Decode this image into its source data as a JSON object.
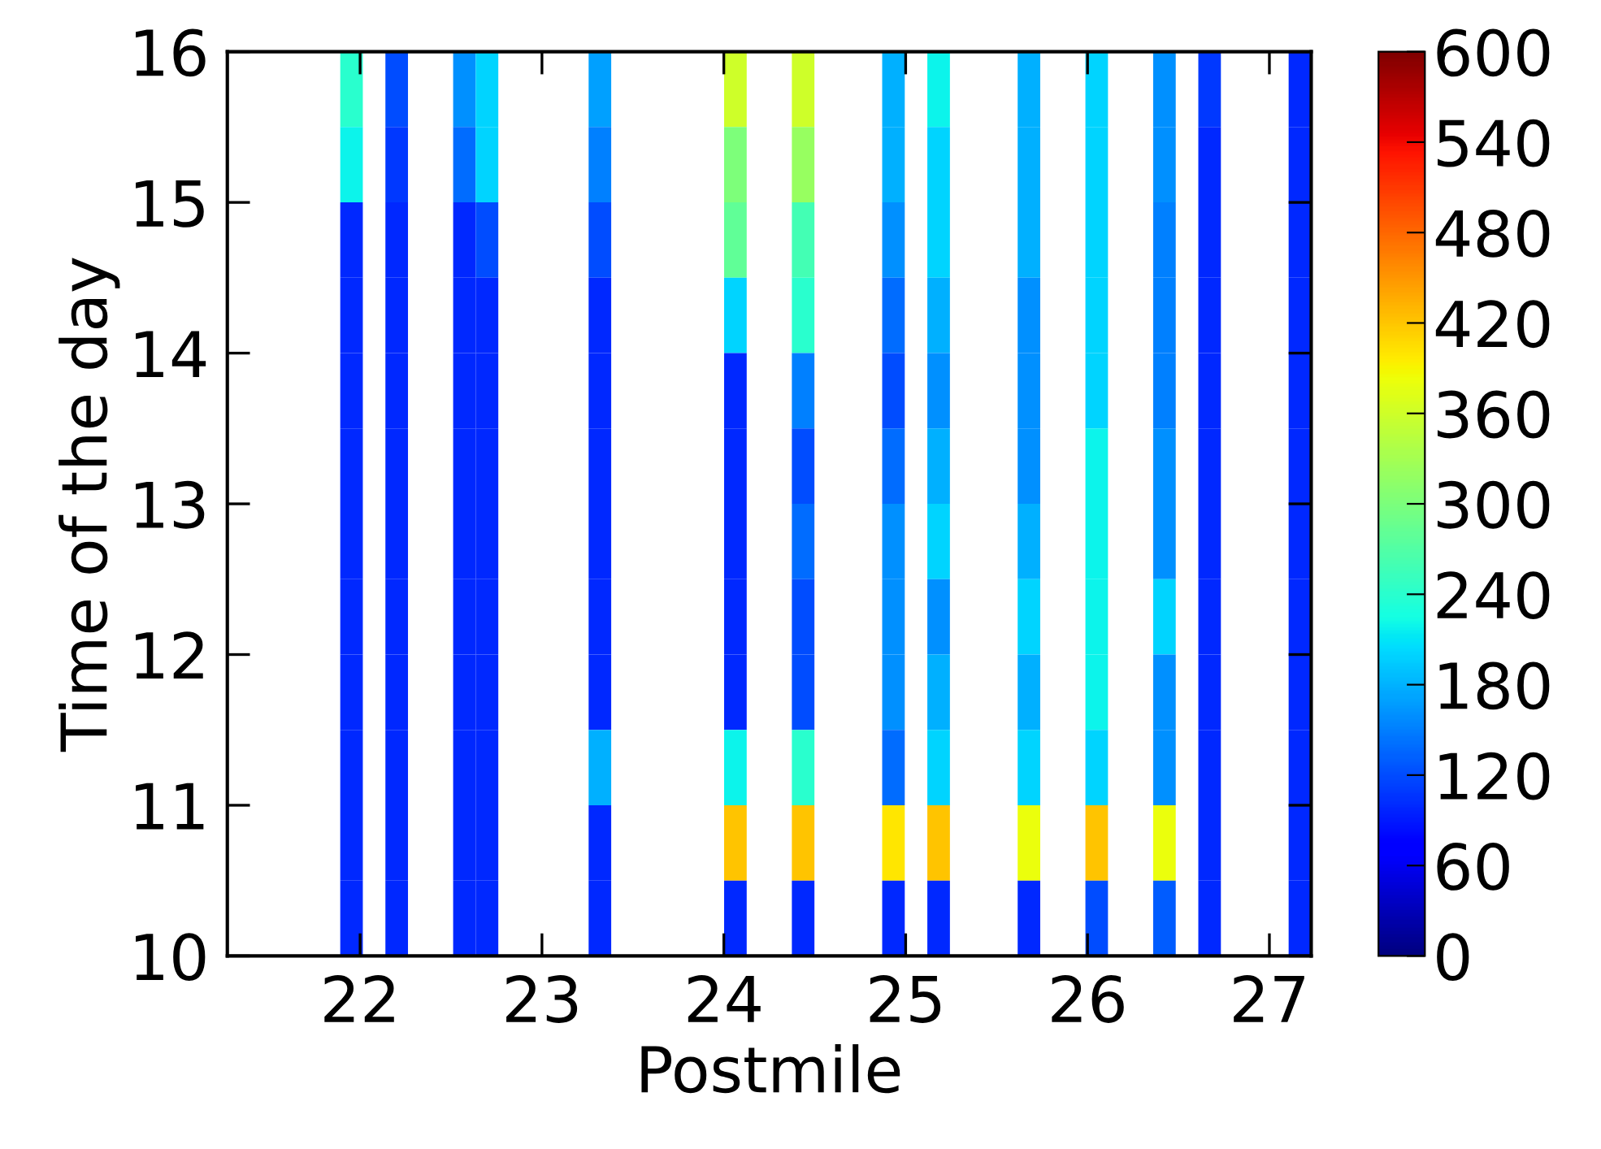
{
  "chart_data": {
    "type": "heatmap",
    "xlabel": "Postmile",
    "ylabel": "Time of the day",
    "xlim": [
      21.27,
      27.23
    ],
    "xticks": [
      22,
      23,
      24,
      25,
      26,
      27
    ],
    "ylim": [
      10,
      16
    ],
    "yticks": [
      10,
      11,
      12,
      13,
      14,
      15,
      16
    ],
    "cells": [
      [
        null,
        null,
        null,
        null,
        null,
        240,
        null,
        120,
        null,
        null,
        160,
        200,
        null,
        null,
        null,
        null,
        170,
        null,
        null,
        null,
        null,
        null,
        360,
        null,
        null,
        360,
        null,
        null,
        null,
        180,
        null,
        220,
        null,
        null,
        null,
        180,
        null,
        null,
        200,
        null,
        null,
        160,
        null,
        110,
        null,
        null,
        null,
        100
      ],
      [
        null,
        null,
        null,
        null,
        null,
        220,
        null,
        110,
        null,
        null,
        140,
        200,
        null,
        null,
        null,
        null,
        150,
        null,
        null,
        null,
        null,
        null,
        300,
        null,
        null,
        320,
        null,
        null,
        null,
        180,
        null,
        200,
        null,
        null,
        null,
        180,
        null,
        null,
        200,
        null,
        null,
        160,
        null,
        100,
        null,
        null,
        null,
        100
      ],
      [
        null,
        null,
        null,
        null,
        null,
        100,
        null,
        100,
        null,
        null,
        100,
        120,
        null,
        null,
        null,
        null,
        120,
        null,
        null,
        null,
        null,
        null,
        280,
        null,
        null,
        260,
        null,
        null,
        null,
        160,
        null,
        200,
        null,
        null,
        null,
        180,
        null,
        null,
        200,
        null,
        null,
        150,
        null,
        100,
        null,
        null,
        null,
        100
      ],
      [
        null,
        null,
        null,
        null,
        null,
        100,
        null,
        100,
        null,
        null,
        100,
        100,
        null,
        null,
        null,
        null,
        100,
        null,
        null,
        null,
        null,
        null,
        200,
        null,
        null,
        240,
        null,
        null,
        null,
        140,
        null,
        180,
        null,
        null,
        null,
        160,
        null,
        null,
        200,
        null,
        null,
        150,
        null,
        100,
        null,
        null,
        null,
        100
      ],
      [
        null,
        null,
        null,
        null,
        null,
        100,
        null,
        100,
        null,
        null,
        100,
        100,
        null,
        null,
        null,
        null,
        100,
        null,
        null,
        null,
        null,
        null,
        100,
        null,
        null,
        150,
        null,
        null,
        null,
        120,
        null,
        160,
        null,
        null,
        null,
        160,
        null,
        null,
        200,
        null,
        null,
        150,
        null,
        100,
        null,
        null,
        null,
        100
      ],
      [
        null,
        null,
        null,
        null,
        null,
        100,
        null,
        100,
        null,
        null,
        100,
        100,
        null,
        null,
        null,
        null,
        100,
        null,
        null,
        null,
        null,
        null,
        100,
        null,
        null,
        120,
        null,
        null,
        null,
        140,
        null,
        180,
        null,
        null,
        null,
        160,
        null,
        null,
        220,
        null,
        null,
        160,
        null,
        100,
        null,
        null,
        null,
        100
      ],
      [
        null,
        null,
        null,
        null,
        null,
        100,
        null,
        100,
        null,
        null,
        100,
        100,
        null,
        null,
        null,
        null,
        100,
        null,
        null,
        null,
        null,
        null,
        100,
        null,
        null,
        140,
        null,
        null,
        null,
        160,
        null,
        200,
        null,
        null,
        null,
        180,
        null,
        null,
        220,
        null,
        null,
        160,
        null,
        100,
        null,
        null,
        null,
        100
      ],
      [
        null,
        null,
        null,
        null,
        null,
        100,
        null,
        100,
        null,
        null,
        100,
        100,
        null,
        null,
        null,
        null,
        100,
        null,
        null,
        null,
        null,
        null,
        100,
        null,
        null,
        120,
        null,
        null,
        null,
        160,
        null,
        160,
        null,
        null,
        null,
        200,
        null,
        null,
        220,
        null,
        null,
        200,
        null,
        100,
        null,
        null,
        null,
        100
      ],
      [
        null,
        null,
        null,
        null,
        null,
        100,
        null,
        100,
        null,
        null,
        100,
        100,
        null,
        null,
        null,
        null,
        100,
        null,
        null,
        null,
        null,
        null,
        100,
        null,
        null,
        120,
        null,
        null,
        null,
        160,
        null,
        180,
        null,
        null,
        null,
        180,
        null,
        null,
        220,
        null,
        null,
        160,
        null,
        100,
        null,
        null,
        null,
        100
      ],
      [
        null,
        null,
        null,
        null,
        null,
        100,
        null,
        100,
        null,
        null,
        100,
        100,
        null,
        null,
        null,
        null,
        180,
        null,
        null,
        null,
        null,
        null,
        220,
        null,
        null,
        240,
        null,
        null,
        null,
        140,
        null,
        200,
        null,
        null,
        null,
        200,
        null,
        null,
        200,
        null,
        null,
        160,
        null,
        100,
        null,
        null,
        null,
        100
      ],
      [
        null,
        null,
        null,
        null,
        null,
        100,
        null,
        100,
        null,
        null,
        100,
        100,
        null,
        null,
        null,
        null,
        100,
        null,
        null,
        null,
        null,
        null,
        420,
        null,
        null,
        420,
        null,
        null,
        null,
        400,
        null,
        420,
        null,
        null,
        null,
        380,
        null,
        null,
        420,
        null,
        null,
        380,
        null,
        100,
        null,
        null,
        null,
        100
      ],
      [
        null,
        null,
        null,
        null,
        null,
        100,
        null,
        100,
        null,
        null,
        100,
        100,
        null,
        null,
        null,
        null,
        100,
        null,
        null,
        null,
        null,
        null,
        100,
        null,
        null,
        100,
        null,
        null,
        null,
        100,
        null,
        100,
        null,
        null,
        null,
        100,
        null,
        null,
        120,
        null,
        null,
        130,
        null,
        100,
        null,
        null,
        null,
        100
      ]
    ],
    "clim": [
      0,
      600
    ],
    "cticks": [
      0,
      60,
      120,
      180,
      240,
      300,
      360,
      420,
      480,
      540,
      600
    ],
    "grid": false
  }
}
